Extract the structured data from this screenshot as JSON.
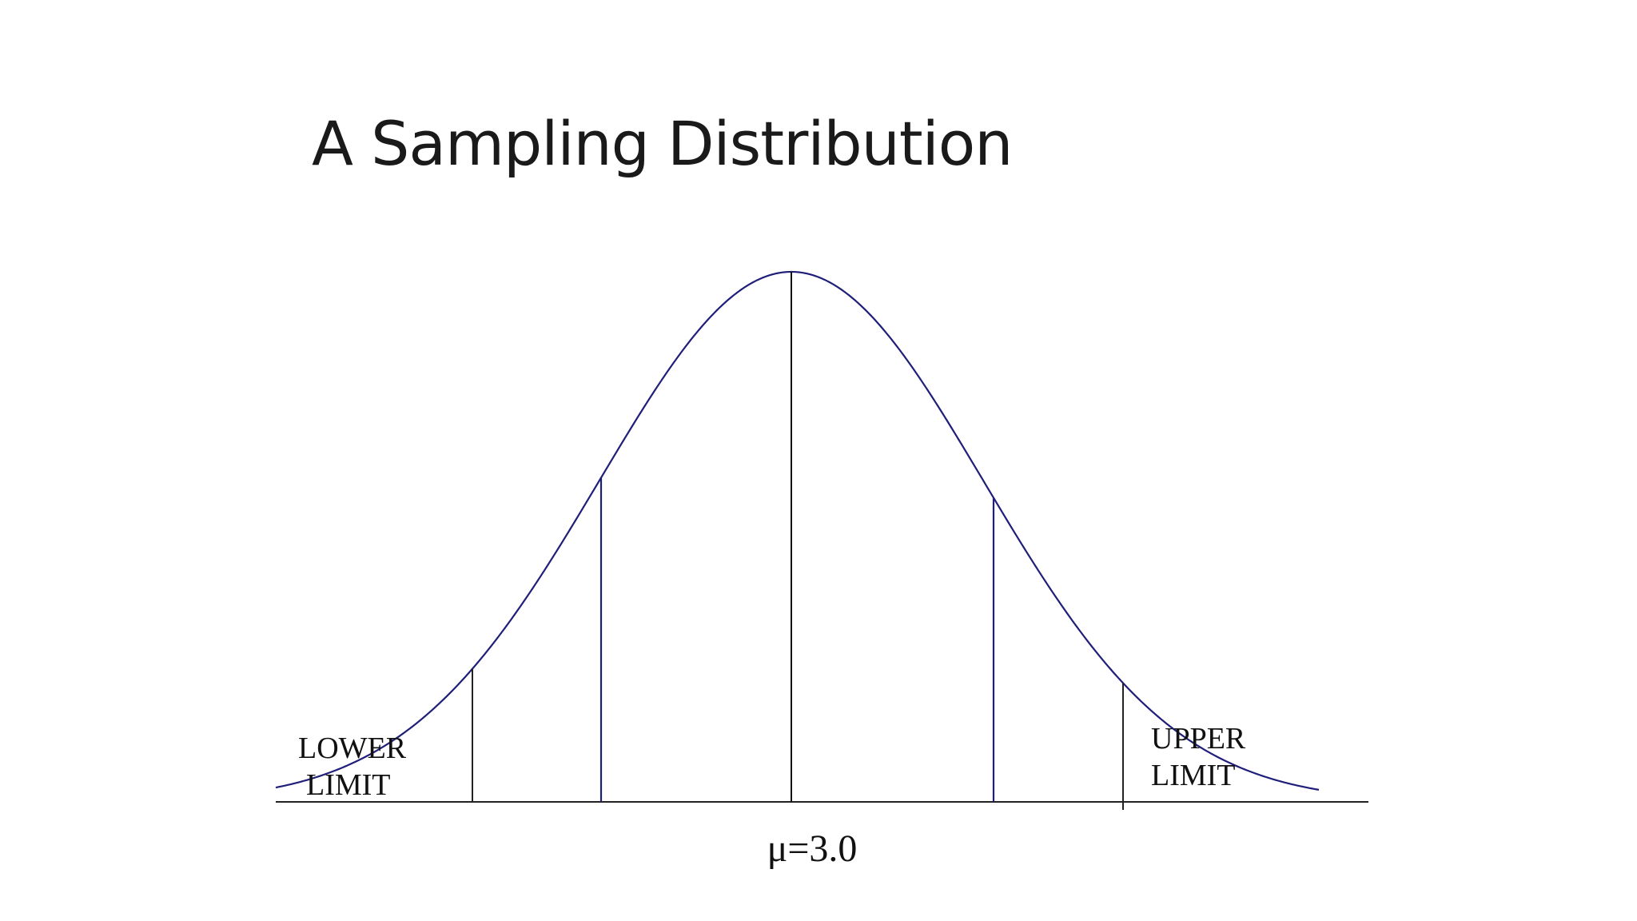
{
  "title": "A Sampling Distribution",
  "diagram": {
    "lower_limit": [
      "LOWER",
      "LIMIT"
    ],
    "upper_limit": [
      "UPPER",
      "LIMIT"
    ],
    "mean_label": "μ=3.0",
    "colors": {
      "curve": "#1f1f7a",
      "axis": "#222222",
      "center_line": "#111111",
      "text": "#111111"
    }
  }
}
